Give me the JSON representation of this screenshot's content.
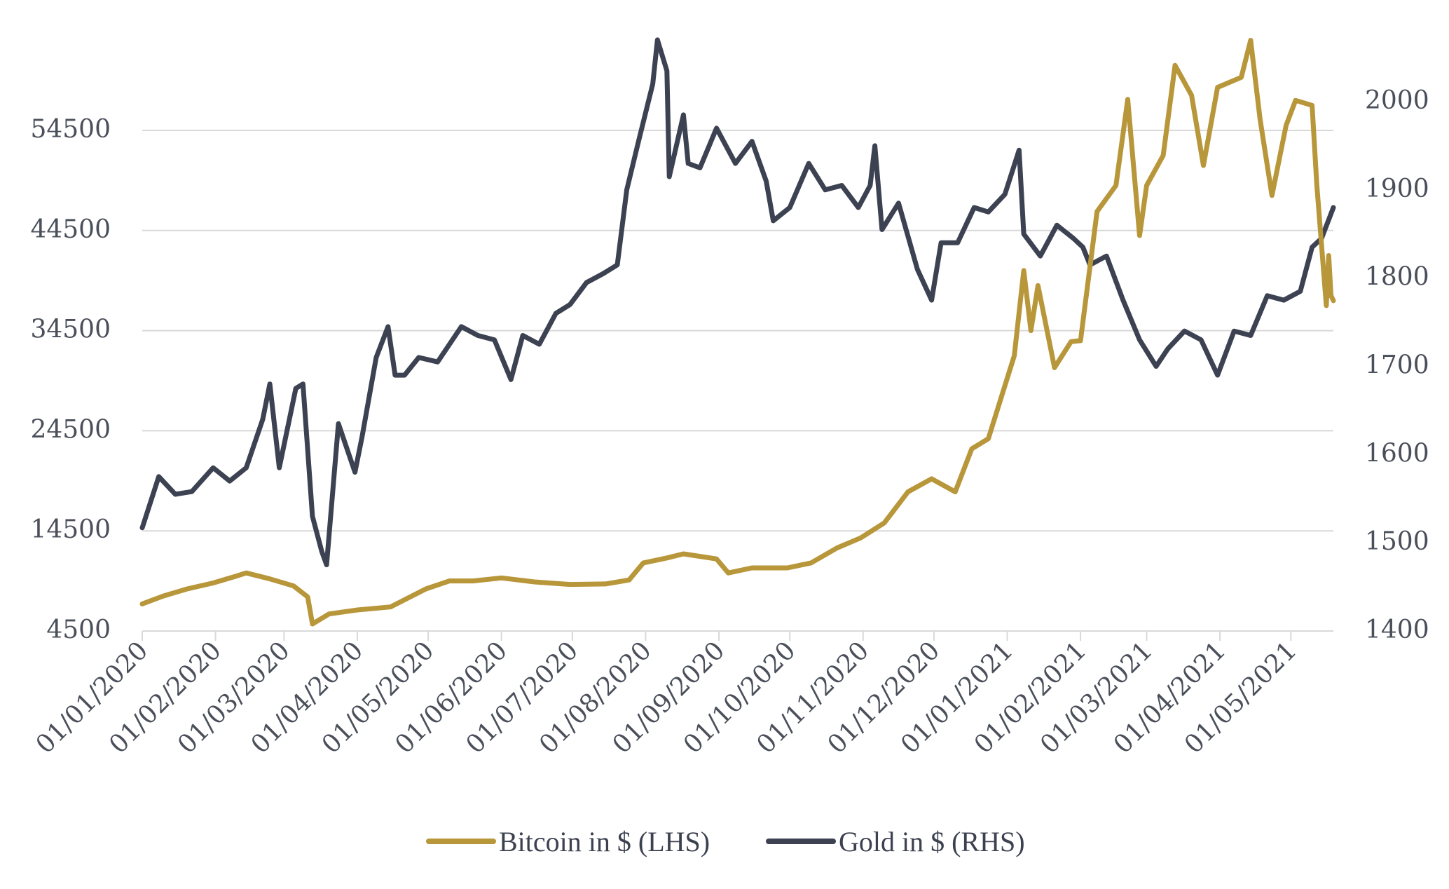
{
  "chart_data": {
    "type": "line",
    "title": "",
    "xlabel": "",
    "ylabel_left": "",
    "ylabel_right": "",
    "x_tick_labels": [
      "01/01/2020",
      "01/02/2020",
      "01/03/2020",
      "01/04/2020",
      "01/05/2020",
      "01/06/2020",
      "01/07/2020",
      "01/08/2020",
      "01/09/2020",
      "01/10/2020",
      "01/11/2020",
      "01/12/2020",
      "01/01/2021",
      "01/02/2021",
      "01/03/2021",
      "01/04/2021",
      "01/05/2021"
    ],
    "xlim": [
      "2020-01-01",
      "2021-05-19"
    ],
    "y_left": {
      "ticks": [
        "4500",
        "14500",
        "24500",
        "34500",
        "44500",
        "54500"
      ],
      "ylim": [
        4500,
        64500
      ]
    },
    "y_right": {
      "ticks": [
        "1400",
        "1500",
        "1600",
        "1700",
        "1800",
        "1900",
        "2000"
      ],
      "ylim": [
        1400,
        2110
      ]
    },
    "grid": "horizontal",
    "legend_position": "bottom",
    "legend": [
      "Bitcoin in $ (LHS)",
      "Gold in $ (RHS)"
    ],
    "series": [
      {
        "name": "Bitcoin in $ (LHS)",
        "axis": "left",
        "color": "#b8963a",
        "points": [
          [
            "2020-01-01",
            7200
          ],
          [
            "2020-01-10",
            8000
          ],
          [
            "2020-01-20",
            8700
          ],
          [
            "2020-01-31",
            9300
          ],
          [
            "2020-02-10",
            10000
          ],
          [
            "2020-02-14",
            10300
          ],
          [
            "2020-02-24",
            9700
          ],
          [
            "2020-03-05",
            9000
          ],
          [
            "2020-03-11",
            7900
          ],
          [
            "2020-03-13",
            5200
          ],
          [
            "2020-03-20",
            6200
          ],
          [
            "2020-04-01",
            6600
          ],
          [
            "2020-04-15",
            6900
          ],
          [
            "2020-04-30",
            8700
          ],
          [
            "2020-05-10",
            9500
          ],
          [
            "2020-05-20",
            9500
          ],
          [
            "2020-06-01",
            9800
          ],
          [
            "2020-06-15",
            9400
          ],
          [
            "2020-06-30",
            9150
          ],
          [
            "2020-07-15",
            9200
          ],
          [
            "2020-07-25",
            9600
          ],
          [
            "2020-07-31",
            11300
          ],
          [
            "2020-08-10",
            11800
          ],
          [
            "2020-08-17",
            12200
          ],
          [
            "2020-08-31",
            11700
          ],
          [
            "2020-09-05",
            10300
          ],
          [
            "2020-09-15",
            10800
          ],
          [
            "2020-09-30",
            10800
          ],
          [
            "2020-10-10",
            11300
          ],
          [
            "2020-10-21",
            12800
          ],
          [
            "2020-10-31",
            13800
          ],
          [
            "2020-11-10",
            15300
          ],
          [
            "2020-11-20",
            18400
          ],
          [
            "2020-11-30",
            19700
          ],
          [
            "2020-12-10",
            18400
          ],
          [
            "2020-12-17",
            22700
          ],
          [
            "2020-12-24",
            23700
          ],
          [
            "2020-12-31",
            29000
          ],
          [
            "2021-01-04",
            32000
          ],
          [
            "2021-01-08",
            40500
          ],
          [
            "2021-01-11",
            34500
          ],
          [
            "2021-01-14",
            39000
          ],
          [
            "2021-01-21",
            30800
          ],
          [
            "2021-01-28",
            33400
          ],
          [
            "2021-02-01",
            33500
          ],
          [
            "2021-02-08",
            46400
          ],
          [
            "2021-02-16",
            49000
          ],
          [
            "2021-02-21",
            57600
          ],
          [
            "2021-02-26",
            44000
          ],
          [
            "2021-03-01",
            49000
          ],
          [
            "2021-03-08",
            52000
          ],
          [
            "2021-03-13",
            61000
          ],
          [
            "2021-03-20",
            58000
          ],
          [
            "2021-03-25",
            51000
          ],
          [
            "2021-03-31",
            58800
          ],
          [
            "2021-04-10",
            59800
          ],
          [
            "2021-04-14",
            63500
          ],
          [
            "2021-04-18",
            55600
          ],
          [
            "2021-04-23",
            48000
          ],
          [
            "2021-04-29",
            55000
          ],
          [
            "2021-05-03",
            57500
          ],
          [
            "2021-05-10",
            57000
          ],
          [
            "2021-05-12",
            49000
          ],
          [
            "2021-05-16",
            37000
          ],
          [
            "2021-05-17",
            42000
          ],
          [
            "2021-05-18",
            38000
          ],
          [
            "2021-05-19",
            37500
          ]
        ]
      },
      {
        "name": "Gold in $ (RHS)",
        "axis": "right",
        "color": "#3d4252",
        "points": [
          [
            "2020-01-01",
            1517
          ],
          [
            "2020-01-08",
            1575
          ],
          [
            "2020-01-15",
            1555
          ],
          [
            "2020-01-22",
            1558
          ],
          [
            "2020-01-31",
            1585
          ],
          [
            "2020-02-07",
            1570
          ],
          [
            "2020-02-14",
            1585
          ],
          [
            "2020-02-21",
            1640
          ],
          [
            "2020-02-24",
            1680
          ],
          [
            "2020-02-28",
            1585
          ],
          [
            "2020-03-06",
            1675
          ],
          [
            "2020-03-09",
            1680
          ],
          [
            "2020-03-13",
            1530
          ],
          [
            "2020-03-17",
            1490
          ],
          [
            "2020-03-19",
            1475
          ],
          [
            "2020-03-24",
            1635
          ],
          [
            "2020-03-31",
            1580
          ],
          [
            "2020-04-03",
            1620
          ],
          [
            "2020-04-09",
            1710
          ],
          [
            "2020-04-14",
            1745
          ],
          [
            "2020-04-17",
            1690
          ],
          [
            "2020-04-21",
            1690
          ],
          [
            "2020-04-27",
            1710
          ],
          [
            "2020-05-05",
            1705
          ],
          [
            "2020-05-15",
            1745
          ],
          [
            "2020-05-22",
            1735
          ],
          [
            "2020-05-29",
            1730
          ],
          [
            "2020-06-05",
            1685
          ],
          [
            "2020-06-10",
            1735
          ],
          [
            "2020-06-17",
            1725
          ],
          [
            "2020-06-24",
            1760
          ],
          [
            "2020-06-30",
            1770
          ],
          [
            "2020-07-07",
            1795
          ],
          [
            "2020-07-14",
            1805
          ],
          [
            "2020-07-20",
            1815
          ],
          [
            "2020-07-24",
            1900
          ],
          [
            "2020-07-29",
            1955
          ],
          [
            "2020-08-04",
            2020
          ],
          [
            "2020-08-06",
            2070
          ],
          [
            "2020-08-10",
            2035
          ],
          [
            "2020-08-11",
            1915
          ],
          [
            "2020-08-17",
            1985
          ],
          [
            "2020-08-19",
            1930
          ],
          [
            "2020-08-24",
            1925
          ],
          [
            "2020-08-31",
            1970
          ],
          [
            "2020-09-08",
            1930
          ],
          [
            "2020-09-15",
            1955
          ],
          [
            "2020-09-21",
            1910
          ],
          [
            "2020-09-24",
            1865
          ],
          [
            "2020-10-01",
            1880
          ],
          [
            "2020-10-09",
            1930
          ],
          [
            "2020-10-16",
            1900
          ],
          [
            "2020-10-23",
            1905
          ],
          [
            "2020-10-30",
            1880
          ],
          [
            "2020-11-04",
            1905
          ],
          [
            "2020-11-06",
            1950
          ],
          [
            "2020-11-09",
            1855
          ],
          [
            "2020-11-16",
            1885
          ],
          [
            "2020-11-24",
            1810
          ],
          [
            "2020-11-30",
            1775
          ],
          [
            "2020-12-04",
            1840
          ],
          [
            "2020-12-11",
            1840
          ],
          [
            "2020-12-18",
            1880
          ],
          [
            "2020-12-24",
            1875
          ],
          [
            "2020-12-31",
            1895
          ],
          [
            "2021-01-06",
            1945
          ],
          [
            "2021-01-08",
            1850
          ],
          [
            "2021-01-15",
            1825
          ],
          [
            "2021-01-22",
            1860
          ],
          [
            "2021-01-29",
            1845
          ],
          [
            "2021-02-02",
            1835
          ],
          [
            "2021-02-05",
            1815
          ],
          [
            "2021-02-12",
            1825
          ],
          [
            "2021-02-19",
            1775
          ],
          [
            "2021-02-26",
            1730
          ],
          [
            "2021-03-05",
            1700
          ],
          [
            "2021-03-10",
            1720
          ],
          [
            "2021-03-17",
            1740
          ],
          [
            "2021-03-24",
            1730
          ],
          [
            "2021-03-31",
            1690
          ],
          [
            "2021-04-07",
            1740
          ],
          [
            "2021-04-14",
            1735
          ],
          [
            "2021-04-21",
            1780
          ],
          [
            "2021-04-28",
            1775
          ],
          [
            "2021-05-05",
            1785
          ],
          [
            "2021-05-10",
            1835
          ],
          [
            "2021-05-14",
            1845
          ],
          [
            "2021-05-19",
            1880
          ]
        ]
      }
    ]
  }
}
